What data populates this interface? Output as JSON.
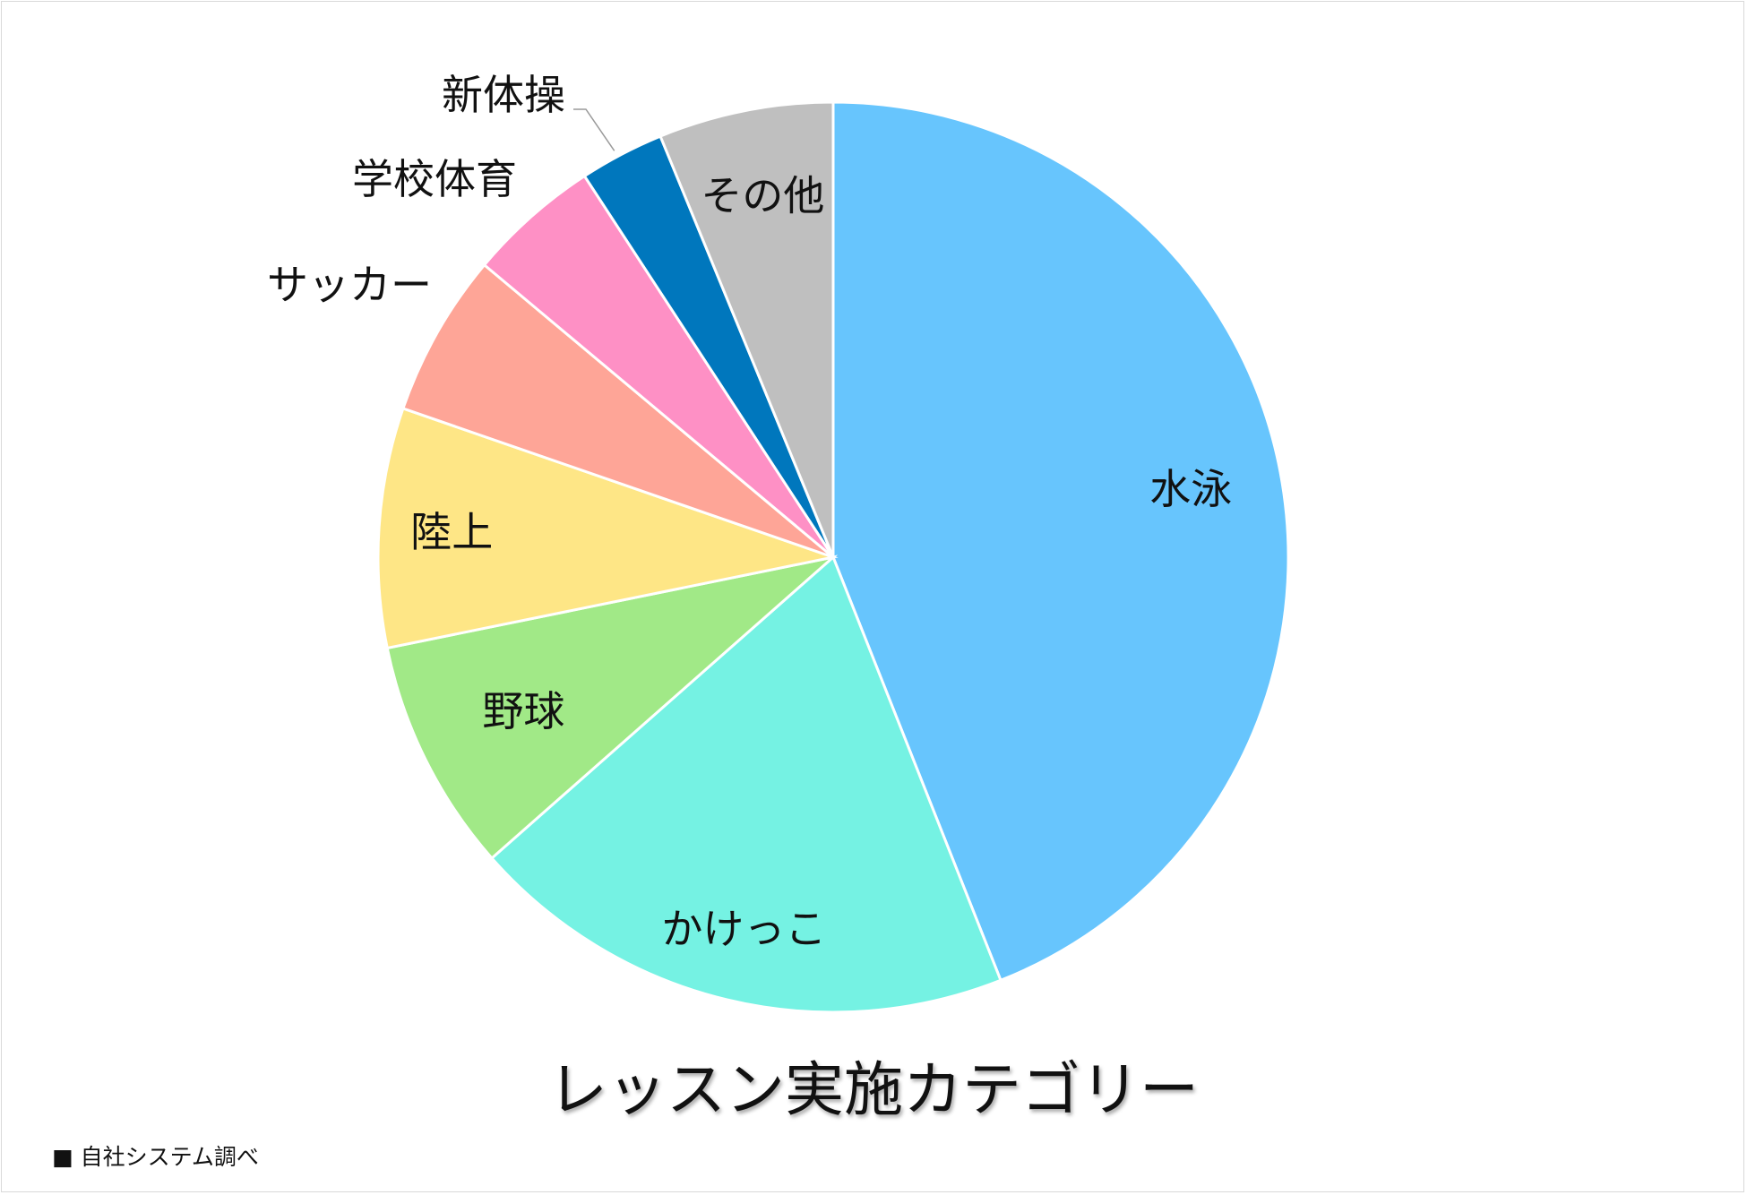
{
  "chart_data": {
    "type": "pie",
    "title": "レッスン実施カテゴリー",
    "slices": [
      {
        "label": "水泳",
        "value": 44.0,
        "color": "#67C5FD"
      },
      {
        "label": "かけっこ",
        "value": 19.5,
        "color": "#75F2E3"
      },
      {
        "label": "野球",
        "value": 8.3,
        "color": "#A1E987"
      },
      {
        "label": "陸上",
        "value": 8.5,
        "color": "#FEE686"
      },
      {
        "label": "サッカー",
        "value": 5.8,
        "color": "#FEA597"
      },
      {
        "label": "学校体育",
        "value": 4.7,
        "color": "#FE90C5"
      },
      {
        "label": "新体操",
        "value": 3.0,
        "color": "#0077BD"
      },
      {
        "label": "その他",
        "value": 6.2,
        "color": "#BFBFBF"
      }
    ],
    "start_angle": "12 o'clock",
    "direction": "clockwise",
    "legend": "none"
  },
  "source": "■ 自社システム調べ"
}
